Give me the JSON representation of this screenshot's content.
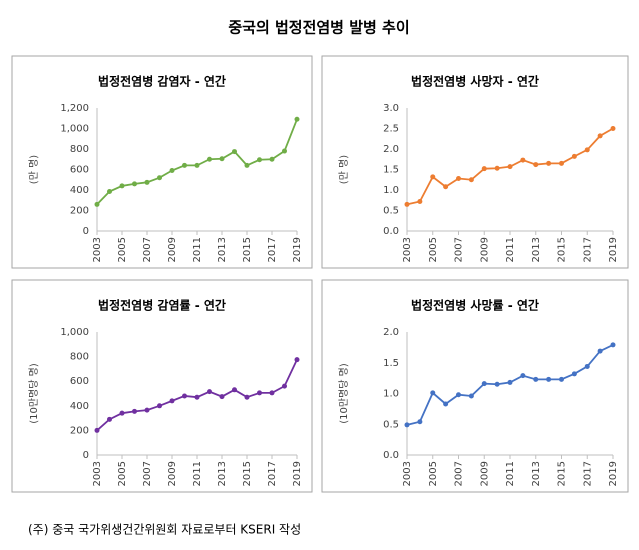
{
  "title": "중국의 법정전염병 발병 추이",
  "note": "(주) 중국 국가위생건간위원회 자료로부터 KSERI 작성",
  "chart_data": [
    {
      "type": "line",
      "title": "법정전염병 감염자 - 연간",
      "y_label": "(만 명)",
      "color": "#70ad47",
      "grid": false,
      "x": [
        2003,
        2004,
        2005,
        2006,
        2007,
        2008,
        2009,
        2010,
        2011,
        2012,
        2013,
        2014,
        2015,
        2016,
        2017,
        2018,
        2019
      ],
      "values": [
        260,
        385,
        440,
        460,
        475,
        520,
        590,
        640,
        640,
        700,
        705,
        775,
        640,
        695,
        700,
        780,
        1090
      ],
      "xlim": [
        2003,
        2019
      ],
      "xticks": [
        2003,
        2005,
        2007,
        2009,
        2011,
        2013,
        2015,
        2017,
        2019
      ],
      "ylim": [
        0,
        1200
      ],
      "yticks": [
        0,
        200,
        400,
        600,
        800,
        {
          "value": 1000,
          "label": "1,000"
        },
        {
          "value": 1200,
          "label": "1,200"
        }
      ]
    },
    {
      "type": "line",
      "title": "법정전염병 사망자 - 연간",
      "y_label": "(만 명)",
      "color": "#ed7d31",
      "grid": false,
      "x": [
        2003,
        2004,
        2005,
        2006,
        2007,
        2008,
        2009,
        2010,
        2011,
        2012,
        2013,
        2014,
        2015,
        2016,
        2017,
        2018,
        2019
      ],
      "values": [
        0.65,
        0.72,
        1.32,
        1.08,
        1.28,
        1.25,
        1.52,
        1.53,
        1.57,
        1.73,
        1.62,
        1.65,
        1.65,
        1.82,
        1.98,
        2.32,
        2.5
      ],
      "xlim": [
        2003,
        2019
      ],
      "xticks": [
        2003,
        2005,
        2007,
        2009,
        2011,
        2013,
        2015,
        2017,
        2019
      ],
      "ylim": [
        0,
        3
      ],
      "yticks": [
        {
          "value": 0,
          "label": "0.0"
        },
        0.5,
        {
          "value": 1,
          "label": "1.0"
        },
        1.5,
        {
          "value": 2,
          "label": "2.0"
        },
        2.5,
        {
          "value": 3,
          "label": "3.0"
        }
      ]
    },
    {
      "type": "line",
      "title": "법정전염병 감염률 - 연간",
      "y_label": "(10만명당 명)",
      "color": "#7030a0",
      "grid": false,
      "x": [
        2003,
        2004,
        2005,
        2006,
        2007,
        2008,
        2009,
        2010,
        2011,
        2012,
        2013,
        2014,
        2015,
        2016,
        2017,
        2018,
        2019
      ],
      "values": [
        200,
        290,
        340,
        355,
        365,
        400,
        440,
        480,
        470,
        515,
        475,
        530,
        470,
        505,
        505,
        560,
        775
      ],
      "xlim": [
        2003,
        2019
      ],
      "xticks": [
        2003,
        2005,
        2007,
        2009,
        2011,
        2013,
        2015,
        2017,
        2019
      ],
      "ylim": [
        0,
        1000
      ],
      "yticks": [
        0,
        200,
        400,
        600,
        800,
        {
          "value": 1000,
          "label": "1,000"
        }
      ]
    },
    {
      "type": "line",
      "title": "법정전염병 사망률 - 연간",
      "y_label": "(10만명당 명)",
      "color": "#4472c4",
      "grid": false,
      "x": [
        2003,
        2004,
        2005,
        2006,
        2007,
        2008,
        2009,
        2010,
        2011,
        2012,
        2013,
        2014,
        2015,
        2016,
        2017,
        2018,
        2019
      ],
      "values": [
        0.49,
        0.54,
        1.01,
        0.83,
        0.98,
        0.96,
        1.16,
        1.15,
        1.18,
        1.29,
        1.23,
        1.23,
        1.23,
        1.32,
        1.44,
        1.69,
        1.79
      ],
      "xlim": [
        2003,
        2019
      ],
      "xticks": [
        2003,
        2005,
        2007,
        2009,
        2011,
        2013,
        2015,
        2017,
        2019
      ],
      "ylim": [
        0,
        2
      ],
      "yticks": [
        {
          "value": 0,
          "label": "0.0"
        },
        0.5,
        {
          "value": 1,
          "label": "1.0"
        },
        1.5,
        {
          "value": 2,
          "label": "2.0"
        }
      ]
    }
  ]
}
